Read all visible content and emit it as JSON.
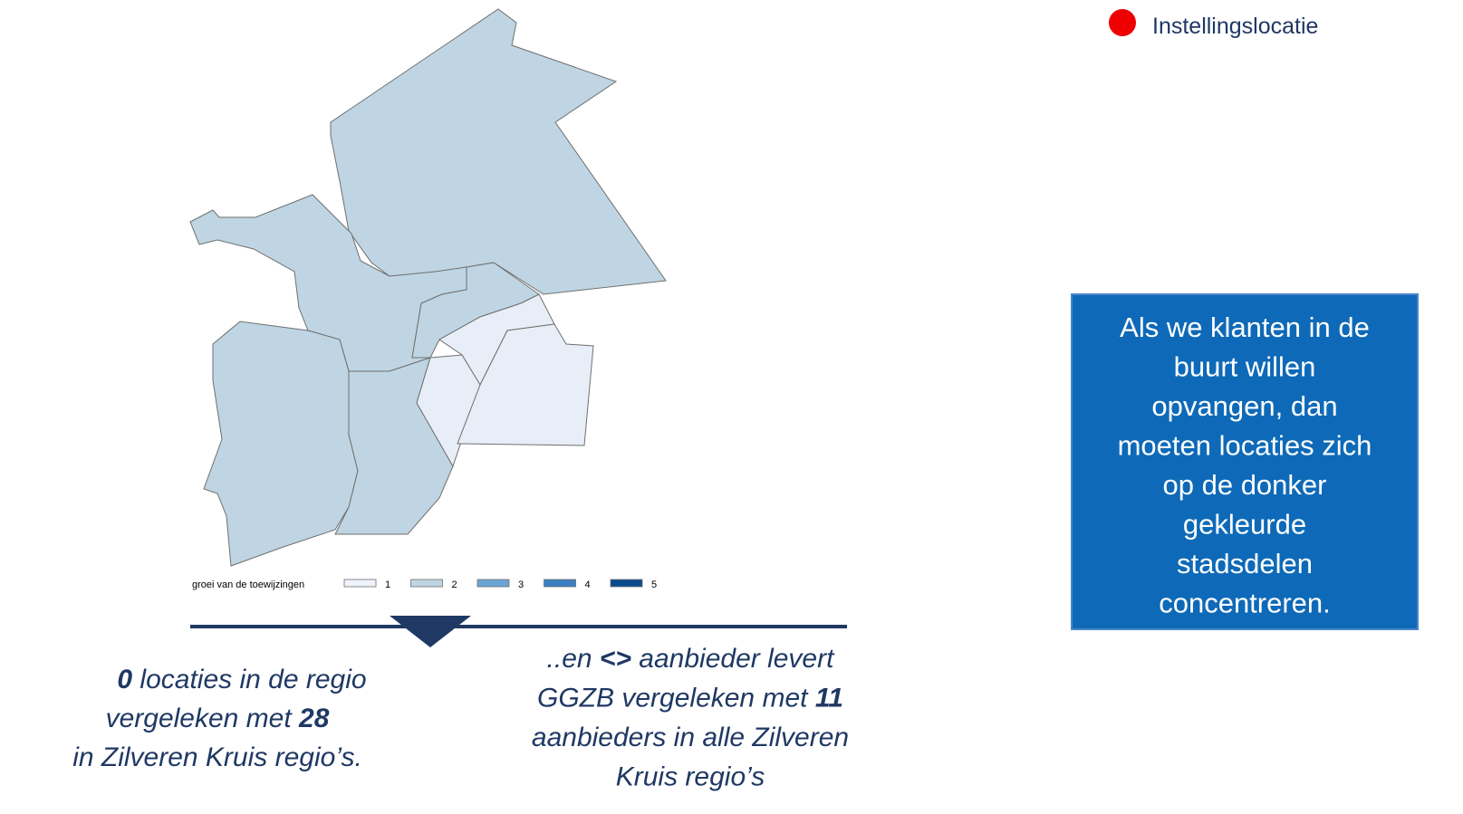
{
  "location_legend": {
    "label": "Instellingslocatie",
    "color": "#ee0000"
  },
  "callout": {
    "lines": [
      "Als we klanten in de",
      "buurt willen",
      "opvangen, dan",
      "moeten locaties zich",
      "op de donker",
      "gekleurde",
      "stadsdelen",
      "concentreren."
    ]
  },
  "map_legend": {
    "title": "groei van de toewijzingen",
    "classes": [
      {
        "label": "1",
        "color": "#eef2fa"
      },
      {
        "label": "2",
        "color": "#bfd5e3"
      },
      {
        "label": "3",
        "color": "#6aa5d4"
      },
      {
        "label": "4",
        "color": "#3a7fc1"
      },
      {
        "label": "5",
        "color": "#0b4a8f"
      }
    ]
  },
  "left_text": {
    "lines": [
      [
        {
          "text": "0",
          "bold": true
        },
        {
          "text": " locaties in de regio"
        }
      ],
      [
        {
          "text": "vergeleken met "
        },
        {
          "text": "28",
          "bold": true
        }
      ],
      [
        {
          "text": "in Zilveren Kruis regio’s."
        }
      ]
    ]
  },
  "right_text": {
    "lines": [
      [
        {
          "text": "..en "
        },
        {
          "text": "<>",
          "bold": true
        },
        {
          "text": " aanbieder levert"
        }
      ],
      [
        {
          "text": "GGZB vergeleken met "
        },
        {
          "text": "11",
          "bold": true
        }
      ],
      [
        {
          "text": "aanbieders in alle Zilveren"
        }
      ],
      [
        {
          "text": "Kruis regio’s"
        }
      ]
    ]
  }
}
